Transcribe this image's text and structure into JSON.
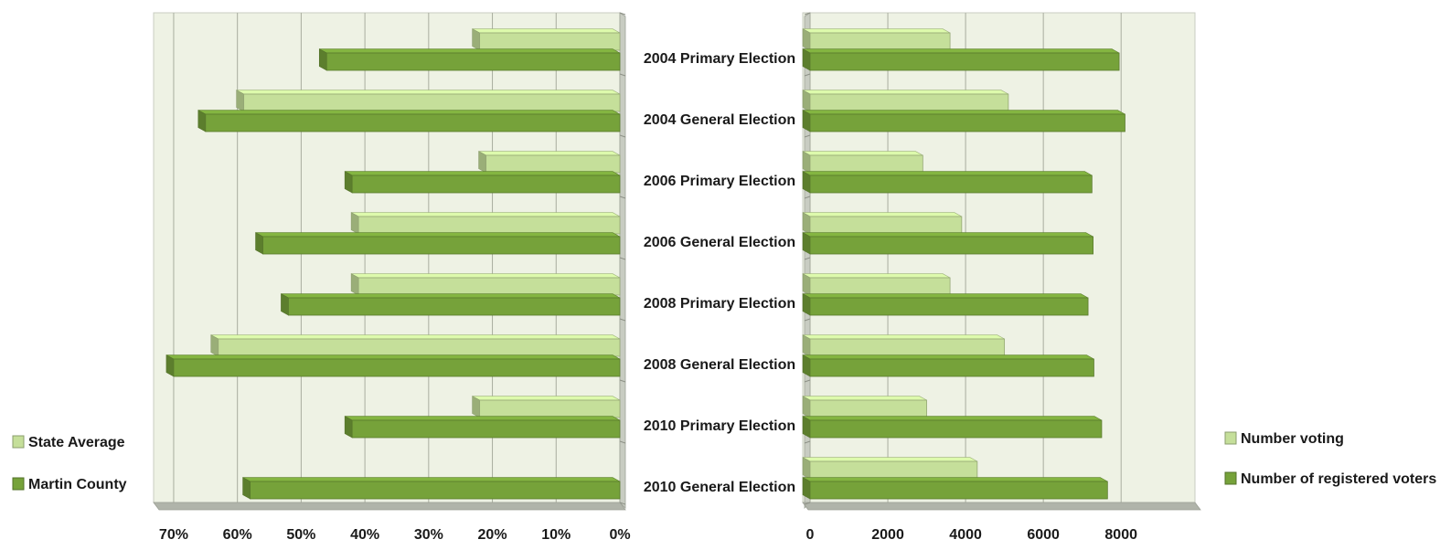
{
  "categories": [
    "2004 Primary Election",
    "2004 General Election",
    "2006 Primary Election",
    "2006 General Election",
    "2008 Primary Election",
    "2008 General Election",
    "2010 Primary Election",
    "2010 General Election"
  ],
  "colors": {
    "light_bar": "#c5df9a",
    "dark_bar": "#76a23a",
    "plot_bg": "#eef2e4",
    "gridline": "#a9ad9f",
    "wall": "#c8ccc2",
    "floor": "#b0b4aa"
  },
  "chart_data": [
    {
      "type": "bar",
      "orientation": "horizontal",
      "x_reversed": true,
      "categories": [
        "2004 Primary Election",
        "2004 General Election",
        "2006 Primary Election",
        "2006 General Election",
        "2008 Primary Election",
        "2008 General Election",
        "2010 Primary Election",
        "2010 General Election"
      ],
      "series": [
        {
          "name": "State Average",
          "values": [
            22,
            59,
            21,
            41,
            41,
            63,
            22,
            0
          ]
        },
        {
          "name": "Martin County",
          "values": [
            46,
            65,
            42,
            56,
            52,
            70,
            42,
            58
          ]
        }
      ],
      "xlim": [
        0,
        72
      ],
      "xticks": [
        0,
        10,
        20,
        30,
        40,
        50,
        60,
        70
      ],
      "xtick_labels": [
        "0%",
        "10%",
        "20%",
        "30%",
        "40%",
        "50%",
        "60%",
        "70%"
      ],
      "grid": true,
      "legend": "bottom-left"
    },
    {
      "type": "bar",
      "orientation": "horizontal",
      "categories": [
        "2004 Primary Election",
        "2004 General Election",
        "2006 Primary Election",
        "2006 General Election",
        "2008 Primary Election",
        "2008 General Election",
        "2010 Primary Election",
        "2010 General Election"
      ],
      "series": [
        {
          "name": "Number voting",
          "values": [
            3600,
            5100,
            2900,
            3900,
            3600,
            5000,
            3000,
            4300
          ]
        },
        {
          "name": "Number of registered voters",
          "values": [
            7950,
            8100,
            7250,
            7280,
            7150,
            7300,
            7500,
            7650
          ]
        }
      ],
      "xlim": [
        0,
        9900
      ],
      "xticks": [
        0,
        2000,
        4000,
        6000,
        8000
      ],
      "xtick_labels": [
        "0",
        "2000",
        "4000",
        "6000",
        "8000"
      ],
      "grid": true,
      "legend": "right"
    }
  ]
}
